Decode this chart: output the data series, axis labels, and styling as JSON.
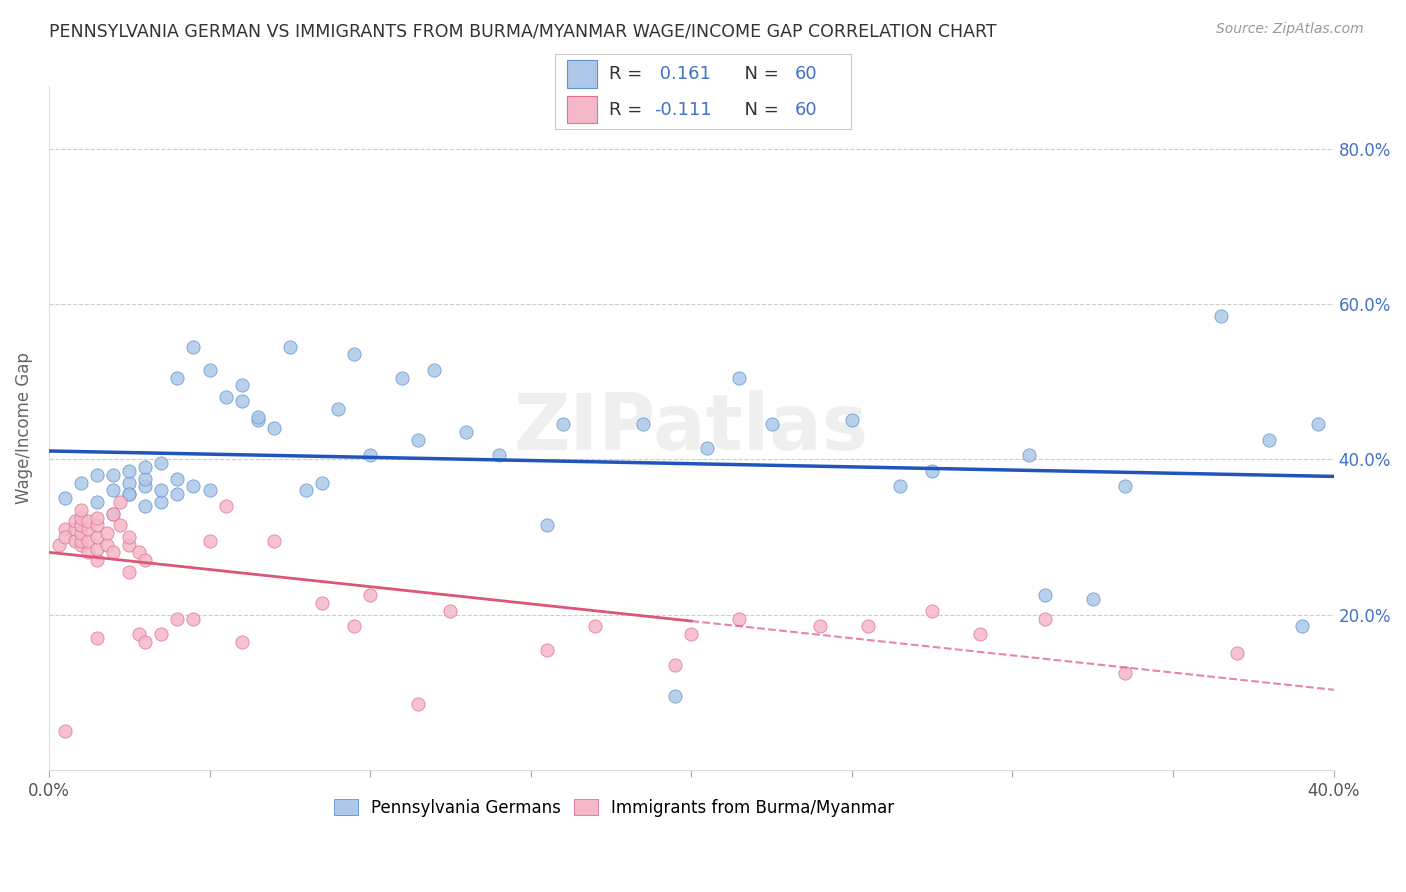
{
  "title": "PENNSYLVANIA GERMAN VS IMMIGRANTS FROM BURMA/MYANMAR WAGE/INCOME GAP CORRELATION CHART",
  "source": "Source: ZipAtlas.com",
  "ylabel": "Wage/Income Gap",
  "xmin": 0.0,
  "xmax": 0.4,
  "ymin": 0.0,
  "ymax": 0.88,
  "yticks": [
    0.2,
    0.4,
    0.6,
    0.8
  ],
  "ytick_labels": [
    "20.0%",
    "40.0%",
    "60.0%",
    "80.0%"
  ],
  "xticks": [
    0.0,
    0.05,
    0.1,
    0.15,
    0.2,
    0.25,
    0.3,
    0.35,
    0.4
  ],
  "xtick_labels_show": [
    "0.0%",
    "",
    "",
    "",
    "",
    "",
    "",
    "",
    "40.0%"
  ],
  "blue_R": 0.161,
  "pink_R": -0.111,
  "N": 60,
  "blue_color": "#adc8e8",
  "pink_color": "#f5b8ca",
  "blue_edge_color": "#6090d0",
  "pink_edge_color": "#e07090",
  "blue_line_color": "#2255bb",
  "pink_line_color": "#dd5577",
  "legend_blue_label": "Pennsylvania Germans",
  "legend_pink_label": "Immigrants from Burma/Myanmar",
  "watermark": "ZIPatlas",
  "blue_scatter_x": [
    0.005,
    0.01,
    0.015,
    0.015,
    0.02,
    0.02,
    0.02,
    0.025,
    0.025,
    0.025,
    0.025,
    0.03,
    0.03,
    0.03,
    0.03,
    0.035,
    0.035,
    0.035,
    0.04,
    0.04,
    0.04,
    0.045,
    0.045,
    0.05,
    0.05,
    0.055,
    0.06,
    0.06,
    0.065,
    0.065,
    0.07,
    0.075,
    0.08,
    0.085,
    0.09,
    0.095,
    0.1,
    0.11,
    0.115,
    0.12,
    0.13,
    0.14,
    0.155,
    0.16,
    0.185,
    0.195,
    0.205,
    0.215,
    0.225,
    0.25,
    0.265,
    0.275,
    0.305,
    0.31,
    0.325,
    0.335,
    0.365,
    0.38,
    0.39,
    0.395
  ],
  "blue_scatter_y": [
    0.35,
    0.37,
    0.345,
    0.38,
    0.33,
    0.36,
    0.38,
    0.355,
    0.37,
    0.385,
    0.355,
    0.34,
    0.365,
    0.375,
    0.39,
    0.345,
    0.36,
    0.395,
    0.355,
    0.375,
    0.505,
    0.365,
    0.545,
    0.36,
    0.515,
    0.48,
    0.475,
    0.495,
    0.45,
    0.455,
    0.44,
    0.545,
    0.36,
    0.37,
    0.465,
    0.535,
    0.405,
    0.505,
    0.425,
    0.515,
    0.435,
    0.405,
    0.315,
    0.445,
    0.445,
    0.095,
    0.415,
    0.505,
    0.445,
    0.45,
    0.365,
    0.385,
    0.405,
    0.225,
    0.22,
    0.365,
    0.585,
    0.425,
    0.185,
    0.445
  ],
  "pink_scatter_x": [
    0.003,
    0.005,
    0.005,
    0.005,
    0.008,
    0.008,
    0.008,
    0.01,
    0.01,
    0.01,
    0.01,
    0.01,
    0.01,
    0.012,
    0.012,
    0.012,
    0.012,
    0.015,
    0.015,
    0.015,
    0.015,
    0.015,
    0.015,
    0.018,
    0.018,
    0.02,
    0.02,
    0.022,
    0.022,
    0.025,
    0.025,
    0.025,
    0.028,
    0.028,
    0.03,
    0.03,
    0.035,
    0.04,
    0.045,
    0.05,
    0.055,
    0.06,
    0.07,
    0.085,
    0.095,
    0.1,
    0.115,
    0.125,
    0.155,
    0.17,
    0.195,
    0.2,
    0.215,
    0.24,
    0.255,
    0.275,
    0.29,
    0.31,
    0.335,
    0.37
  ],
  "pink_scatter_y": [
    0.29,
    0.31,
    0.3,
    0.05,
    0.295,
    0.31,
    0.32,
    0.29,
    0.295,
    0.305,
    0.315,
    0.325,
    0.335,
    0.28,
    0.295,
    0.31,
    0.32,
    0.27,
    0.285,
    0.3,
    0.315,
    0.325,
    0.17,
    0.29,
    0.305,
    0.28,
    0.33,
    0.315,
    0.345,
    0.29,
    0.3,
    0.255,
    0.28,
    0.175,
    0.27,
    0.165,
    0.175,
    0.195,
    0.195,
    0.295,
    0.34,
    0.165,
    0.295,
    0.215,
    0.185,
    0.225,
    0.085,
    0.205,
    0.155,
    0.185,
    0.135,
    0.175,
    0.195,
    0.185,
    0.185,
    0.205,
    0.175,
    0.195,
    0.125,
    0.15
  ]
}
